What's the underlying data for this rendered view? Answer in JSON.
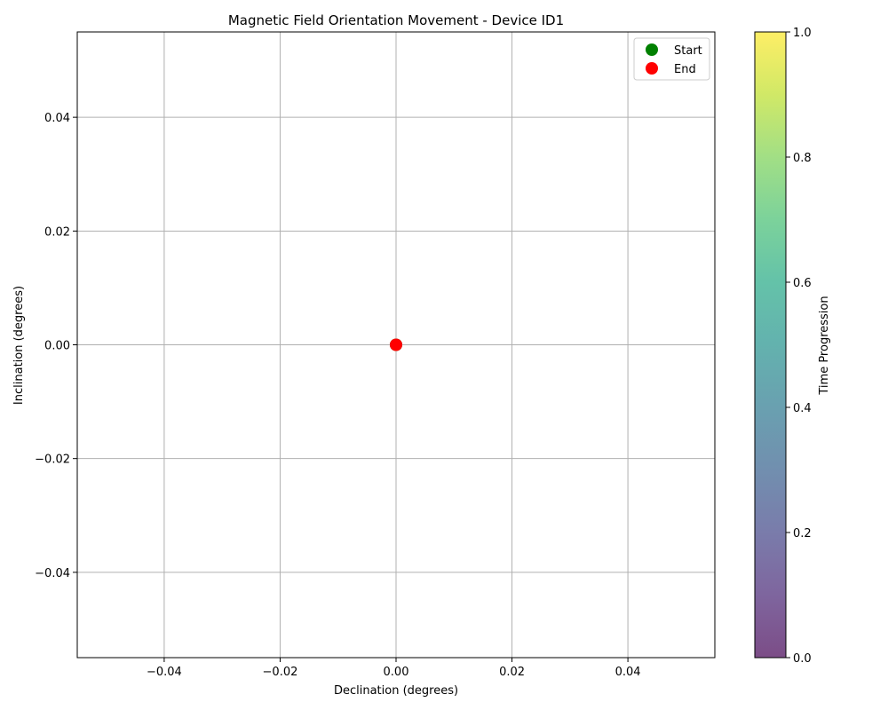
{
  "chart_data": {
    "type": "scatter",
    "title": "Magnetic Field Orientation Movement - Device ID1",
    "xlabel": "Declination (degrees)",
    "ylabel": "Inclination (degrees)",
    "xlim": [
      -0.055,
      0.055
    ],
    "ylim": [
      -0.055,
      0.055
    ],
    "xticks": [
      -0.04,
      -0.02,
      0.0,
      0.02,
      0.04
    ],
    "yticks": [
      -0.04,
      -0.02,
      0.0,
      0.02,
      0.04
    ],
    "xtick_labels": [
      "−0.04",
      "−0.02",
      "0.00",
      "0.02",
      "0.04"
    ],
    "ytick_labels": [
      "−0.04",
      "−0.02",
      "0.00",
      "0.02",
      "0.04"
    ],
    "grid": true,
    "series": [
      {
        "name": "Start",
        "color": "#008000",
        "points": [
          {
            "x": 0.0,
            "y": 0.0
          }
        ]
      },
      {
        "name": "End",
        "color": "#ff0000",
        "points": [
          {
            "x": 0.0,
            "y": 0.0
          }
        ]
      }
    ],
    "legend": {
      "position": "top-right",
      "entries": [
        "Start",
        "End"
      ]
    },
    "colorbar": {
      "label": "Time Progression",
      "range": [
        0,
        1
      ],
      "ticks": [
        0.0,
        0.2,
        0.4,
        0.6,
        0.8,
        1.0
      ],
      "tick_labels": [
        "0.0",
        "0.2",
        "0.4",
        "0.6",
        "0.8",
        "1.0"
      ],
      "colormap": "viridis",
      "alpha": 0.7
    }
  }
}
